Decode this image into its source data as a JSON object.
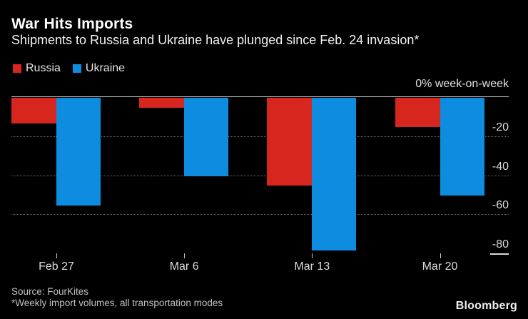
{
  "chart_data": {
    "type": "bar",
    "title": "War Hits Imports",
    "subtitle": "Shipments to Russia and Ukraine have plunged since Feb. 24 invasion*",
    "unit_label": "0% week-on-week",
    "categories": [
      "Feb 27",
      "Mar 6",
      "Mar 13",
      "Mar 20"
    ],
    "series": [
      {
        "name": "Russia",
        "color": "#d6261e",
        "values": [
          -13,
          -5,
          -45,
          -15
        ]
      },
      {
        "name": "Ukraine",
        "color": "#0d8ce0",
        "values": [
          -55,
          -40,
          -78,
          -50
        ]
      }
    ],
    "ylim": [
      -80,
      0
    ],
    "yticks": [
      {
        "value": -20,
        "grid": "full"
      },
      {
        "value": -40,
        "grid": "full"
      },
      {
        "value": -60,
        "grid": "full"
      },
      {
        "value": -80,
        "grid": "end"
      }
    ],
    "grid": "horizontal-dotted",
    "legend_position": "top-left",
    "value_unit": "% week-on-week"
  },
  "legend": [
    {
      "label": "Russia",
      "color": "#d6261e"
    },
    {
      "label": "Ukraine",
      "color": "#0d8ce0"
    }
  ],
  "footer": {
    "source": "Source: FourKites",
    "note": "*Weekly import volumes, all transportation modes",
    "brand": "Bloomberg"
  },
  "colors": {
    "background": "#000000",
    "russia": "#d6261e",
    "ukraine": "#0d8ce0"
  }
}
